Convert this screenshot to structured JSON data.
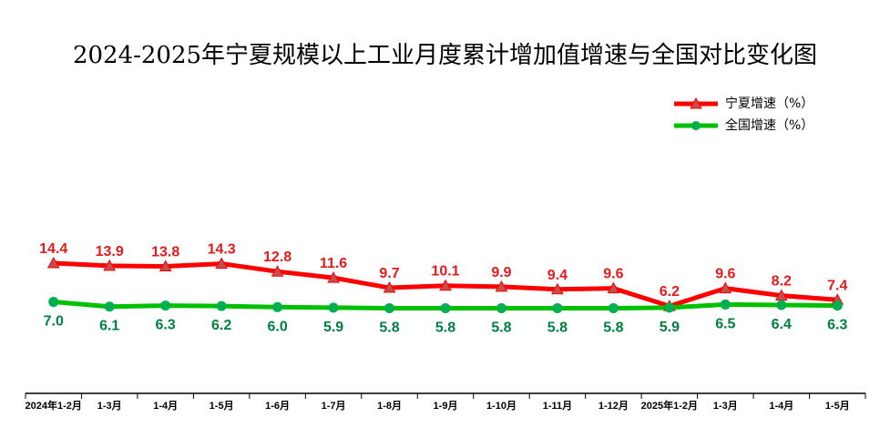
{
  "chart_data": {
    "type": "line",
    "title": "2024-2025年宁夏规模以上工业月度累计增加值增速与全国对比变化图",
    "categories": [
      "2024年1-2月",
      "1-3月",
      "1-4月",
      "1-5月",
      "1-6月",
      "1-7月",
      "1-8月",
      "1-9月",
      "1-10月",
      "1-11月",
      "1-12月",
      "2025年1-2月",
      "1-3月",
      "1-4月",
      "1-5月"
    ],
    "series": [
      {
        "name": "宁夏增速（%）",
        "values": [
          14.4,
          13.9,
          13.8,
          14.3,
          12.8,
          11.6,
          9.7,
          10.1,
          9.9,
          9.4,
          9.6,
          6.2,
          9.6,
          8.2,
          7.4
        ],
        "color": "#ff0000",
        "marker": "triangle",
        "marker_color": "#c0504d",
        "label_color": "#e41a1c"
      },
      {
        "name": "全国增速（%）",
        "values": [
          7.0,
          6.1,
          6.3,
          6.2,
          6.0,
          5.9,
          5.8,
          5.8,
          5.8,
          5.8,
          5.8,
          5.9,
          6.5,
          6.4,
          6.3
        ],
        "color": "#00c000",
        "marker": "circle",
        "marker_color": "#00b050",
        "label_color": "#008040"
      }
    ],
    "labels": {
      "s0": [
        "14.4",
        "13.9",
        "13.8",
        "14.3",
        "12.8",
        "11.6",
        "9.7",
        "10.1",
        "9.9",
        "9.4",
        "9.6",
        "6.2",
        "9.6",
        "8.2",
        "7.4"
      ],
      "s1": [
        "7.0",
        "6.1",
        "6.3",
        "6.2",
        "6.0",
        "5.9",
        "5.8",
        "5.8",
        "5.8",
        "5.8",
        "5.8",
        "5.9",
        "6.5",
        "6.4",
        "6.3"
      ]
    },
    "legend_position": "top-right",
    "grid": false
  }
}
